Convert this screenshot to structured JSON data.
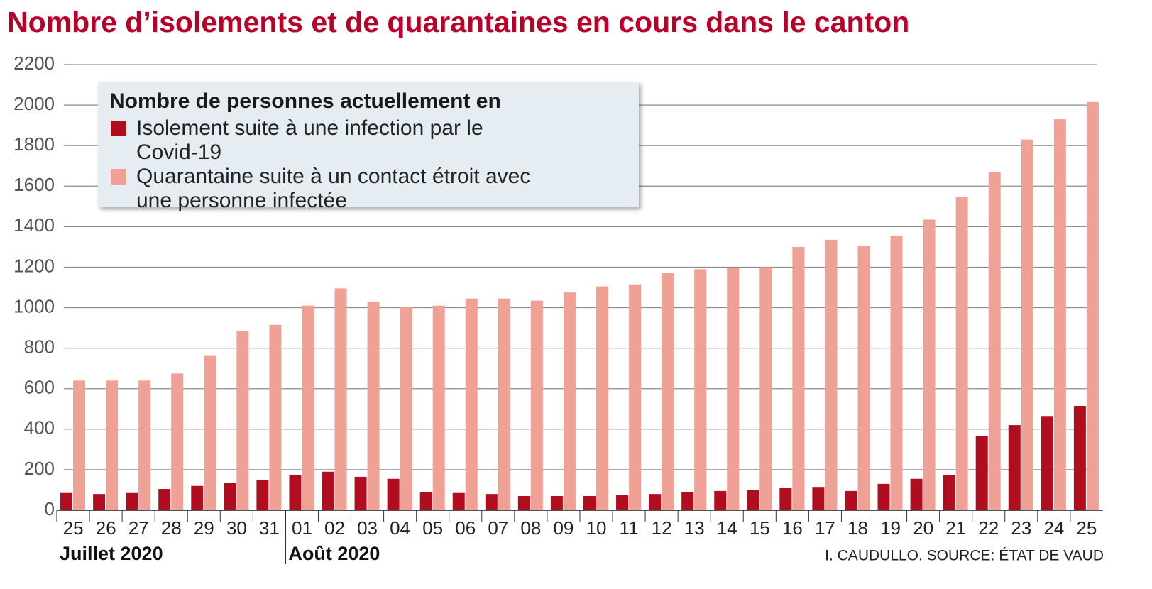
{
  "chart_data": {
    "type": "bar",
    "title": "Nombre d’isolements et de quarantaines en cours dans le canton",
    "legend_title": "Nombre de personnes actuellement en",
    "categories": [
      "25",
      "26",
      "27",
      "28",
      "29",
      "30",
      "31",
      "01",
      "02",
      "03",
      "04",
      "05",
      "06",
      "07",
      "08",
      "09",
      "10",
      "11",
      "12",
      "13",
      "14",
      "15",
      "16",
      "17",
      "18",
      "19",
      "20",
      "21",
      "22",
      "23",
      "24",
      "25"
    ],
    "x_groups": [
      "Juillet 2020",
      "Août 2020"
    ],
    "series": [
      {
        "name": "Isolement suite à une infection par le Covid-19",
        "color": "#b00d1e",
        "values": [
          85,
          80,
          85,
          105,
          120,
          135,
          150,
          175,
          190,
          165,
          155,
          90,
          85,
          80,
          70,
          70,
          70,
          75,
          80,
          90,
          95,
          100,
          110,
          115,
          95,
          130,
          155,
          175,
          365,
          420,
          465,
          515
        ]
      },
      {
        "name": "Quarantaine suite à un contact étroit avec une personne infectée",
        "color": "#f0a195",
        "values": [
          640,
          640,
          640,
          675,
          765,
          885,
          915,
          1010,
          1095,
          1030,
          1005,
          1010,
          1045,
          1045,
          1035,
          1075,
          1105,
          1115,
          1170,
          1190,
          1195,
          1200,
          1300,
          1335,
          1305,
          1355,
          1435,
          1545,
          1670,
          1830,
          1930,
          2015
        ]
      }
    ],
    "ylim": [
      0,
      2200
    ],
    "yticks": [
      0,
      200,
      400,
      600,
      800,
      1000,
      1200,
      1400,
      1600,
      1800,
      2000,
      2200
    ],
    "grid": true,
    "source": "I. CAUDULLO. SOURCE: ÉTAT DE VAUD"
  }
}
